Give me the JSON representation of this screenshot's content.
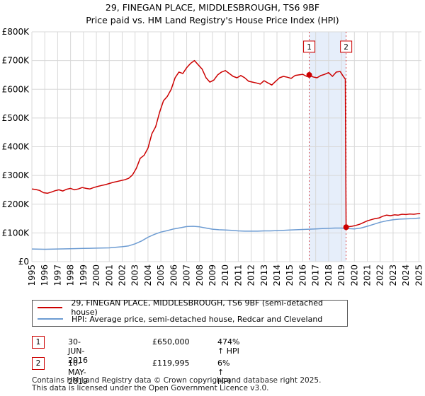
{
  "title": "29, FINEGAN PLACE, MIDDLESBROUGH, TS6 9BF",
  "subtitle": "Price paid vs. HM Land Registry's House Price Index (HPI)",
  "colors": {
    "property": "#cc0000",
    "hpi": "#6c9bd2",
    "shade": "#e6eefa",
    "grid": "#d8d8d8"
  },
  "chart_data": {
    "type": "line",
    "ylim": [
      0,
      800000
    ],
    "xlim": [
      1995,
      2025.2
    ],
    "yticks": [
      {
        "value": 0,
        "label": "£0"
      },
      {
        "value": 100000,
        "label": "£100K"
      },
      {
        "value": 200000,
        "label": "£200K"
      },
      {
        "value": 300000,
        "label": "£300K"
      },
      {
        "value": 400000,
        "label": "£400K"
      },
      {
        "value": 500000,
        "label": "£500K"
      },
      {
        "value": 600000,
        "label": "£600K"
      },
      {
        "value": 700000,
        "label": "£700K"
      },
      {
        "value": 800000,
        "label": "£800K"
      }
    ],
    "xticks": [
      "1995",
      "1996",
      "1997",
      "1998",
      "1999",
      "2000",
      "2001",
      "2002",
      "2003",
      "2004",
      "2005",
      "2006",
      "2007",
      "2008",
      "2009",
      "2010",
      "2011",
      "2012",
      "2013",
      "2014",
      "2015",
      "2016",
      "2017",
      "2018",
      "2019",
      "2020",
      "2021",
      "2022",
      "2023",
      "2024",
      "2025"
    ],
    "shaded_range": [
      2016.5,
      2019.36
    ],
    "series": [
      {
        "name": "29, FINEGAN PLACE, MIDDLESBROUGH, TS6 9BF (semi-detached house)",
        "x": [
          1995,
          1995.3,
          1995.6,
          1995.9,
          1996.2,
          1996.5,
          1996.8,
          1997.1,
          1997.4,
          1997.7,
          1998,
          1998.3,
          1998.6,
          1998.9,
          1999.2,
          1999.5,
          1999.8,
          2000.1,
          2000.4,
          2000.7,
          2001,
          2001.3,
          2001.6,
          2001.9,
          2002.2,
          2002.5,
          2002.8,
          2003.1,
          2003.4,
          2003.7,
          2004,
          2004.3,
          2004.6,
          2004.9,
          2005.2,
          2005.5,
          2005.8,
          2006.1,
          2006.4,
          2006.7,
          2007,
          2007.3,
          2007.6,
          2007.9,
          2008.2,
          2008.5,
          2008.8,
          2009.1,
          2009.4,
          2009.7,
          2010,
          2010.3,
          2010.6,
          2010.9,
          2011.2,
          2011.5,
          2011.8,
          2012.1,
          2012.4,
          2012.7,
          2013,
          2013.3,
          2013.6,
          2013.9,
          2014.2,
          2014.5,
          2014.8,
          2015.1,
          2015.4,
          2015.7,
          2016,
          2016.3,
          2016.5,
          2016.8,
          2017.1,
          2017.4,
          2017.7,
          2018,
          2018.3,
          2018.6,
          2018.9,
          2019.1,
          2019.3,
          2019.36,
          2019.5,
          2019.8,
          2020.1,
          2020.4,
          2020.7,
          2021,
          2021.3,
          2021.6,
          2021.9,
          2022.2,
          2022.5,
          2022.8,
          2023.1,
          2023.4,
          2023.7,
          2024,
          2024.3,
          2024.6,
          2024.9,
          2025.1
        ],
        "y": [
          253000,
          251000,
          248000,
          240000,
          238000,
          242000,
          247000,
          250000,
          246000,
          252000,
          255000,
          250000,
          253000,
          258000,
          255000,
          253000,
          258000,
          262000,
          265000,
          268000,
          272000,
          276000,
          279000,
          282000,
          285000,
          290000,
          302000,
          325000,
          360000,
          370000,
          395000,
          445000,
          470000,
          520000,
          560000,
          575000,
          600000,
          640000,
          660000,
          655000,
          675000,
          690000,
          700000,
          685000,
          670000,
          640000,
          625000,
          632000,
          650000,
          660000,
          665000,
          655000,
          645000,
          640000,
          648000,
          640000,
          628000,
          625000,
          622000,
          618000,
          630000,
          622000,
          615000,
          628000,
          640000,
          645000,
          642000,
          638000,
          648000,
          650000,
          652000,
          645000,
          650000,
          643000,
          640000,
          648000,
          652000,
          658000,
          645000,
          660000,
          662000,
          648000,
          635000,
          119995,
          121000,
          123000,
          126000,
          130000,
          136000,
          142000,
          146000,
          150000,
          152000,
          158000,
          162000,
          160000,
          163000,
          162000,
          165000,
          164000,
          166000,
          165000,
          167000,
          168000
        ]
      },
      {
        "name": "HPI: Average price, semi-detached house, Redcar and Cleveland",
        "x": [
          1995,
          1996,
          1997,
          1998,
          1999,
          2000,
          2001,
          2002,
          2002.5,
          2003,
          2003.5,
          2004,
          2004.5,
          2005,
          2005.5,
          2006,
          2006.5,
          2007,
          2007.5,
          2008,
          2008.5,
          2009,
          2009.5,
          2010,
          2010.5,
          2011,
          2011.5,
          2012,
          2012.5,
          2013,
          2013.5,
          2014,
          2014.5,
          2015,
          2015.5,
          2016,
          2016.5,
          2017,
          2017.5,
          2018,
          2018.5,
          2019,
          2019.5,
          2020,
          2020.5,
          2021,
          2021.5,
          2022,
          2022.5,
          2023,
          2023.5,
          2024,
          2024.5,
          2025.1
        ],
        "y": [
          44000,
          43000,
          44000,
          45000,
          46000,
          47000,
          48000,
          52000,
          55000,
          62000,
          72000,
          85000,
          95000,
          103000,
          108000,
          114000,
          118000,
          122000,
          123000,
          121000,
          117000,
          113000,
          111000,
          110000,
          109000,
          107000,
          106000,
          106000,
          106000,
          107000,
          107000,
          108000,
          109000,
          110000,
          111000,
          112000,
          113000,
          114000,
          115000,
          116000,
          117000,
          117000,
          115000,
          114000,
          117000,
          123000,
          130000,
          137000,
          142000,
          146000,
          148000,
          149000,
          150000,
          152000
        ]
      }
    ],
    "markers": [
      {
        "label": "1",
        "x": 2016.5,
        "y": 650000
      },
      {
        "label": "2",
        "x": 2019.36,
        "y": 119995
      }
    ]
  },
  "legend": {
    "property": "29, FINEGAN PLACE, MIDDLESBROUGH, TS6 9BF (semi-detached house)",
    "hpi": "HPI: Average price, semi-detached house, Redcar and Cleveland"
  },
  "transactions": [
    {
      "num": "1",
      "date": "30-JUN-2016",
      "price": "£650,000",
      "hpi": "474% ↑ HPI"
    },
    {
      "num": "2",
      "date": "10-MAY-2019",
      "price": "£119,995",
      "hpi": "6% ↑ HPI"
    }
  ],
  "footer": {
    "line1": "Contains HM Land Registry data © Crown copyright and database right 2025.",
    "line2": "This data is licensed under the Open Government Licence v3.0."
  }
}
